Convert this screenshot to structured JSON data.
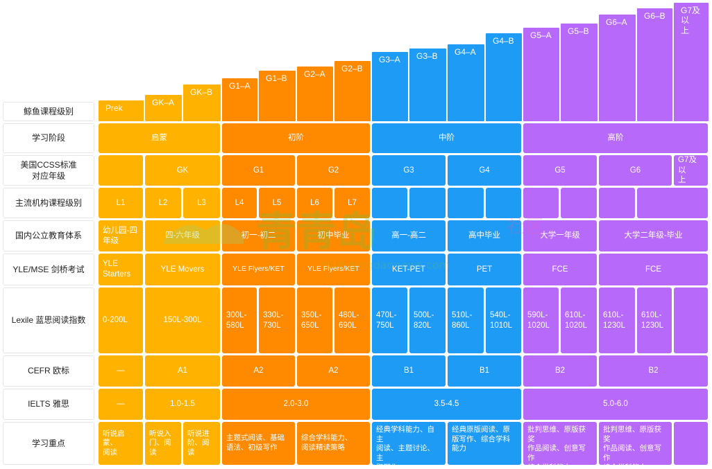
{
  "colors": {
    "yellow": "#FFB300",
    "orange": "#FF8A00",
    "blue": "#1E9BF5",
    "purple": "#B769FA"
  },
  "rows": {
    "levels": "鲸鱼课程级别",
    "stage": "学习阶段",
    "ccss": "美国CCSS标准\n对应年级",
    "inst": "主流机构课程级别",
    "domestic": "国内公立教育体系",
    "yle": "YLE/MSE 剑桥考试",
    "lexile": "Lexile 蓝思阅读指数",
    "cefr": "CEFR 欧标",
    "ielts": "IELTS 雅思",
    "focus": "学习重点"
  },
  "levels": [
    "Prek",
    "GK–A",
    "GK–B",
    "G1–A",
    "G1–B",
    "G2–A",
    "G2–B",
    "G3–A",
    "G3–B",
    "G4–A",
    "G4–B",
    "G5–A",
    "G5–B",
    "G6–A",
    "G6–B",
    "G7及以\n上"
  ],
  "stage": [
    "启蒙",
    "初阶",
    "中阶",
    "高阶"
  ],
  "ccss": [
    "",
    "GK",
    "G1",
    "G2",
    "G3",
    "G4",
    "G5",
    "G6",
    "G7及以\n上"
  ],
  "inst": [
    "L1",
    "L2",
    "L3",
    "L4",
    "L5",
    "L6",
    "L7",
    "",
    "",
    "",
    "",
    "",
    "",
    "",
    ""
  ],
  "domestic": [
    "幼儿园-四\n年级",
    "四-六年级",
    "初一-初二",
    "初中毕业",
    "高一-高二",
    "高中毕业",
    "大学一年级",
    "大学二年级-毕业"
  ],
  "yle": [
    "YLE\nStarters",
    "YLE Movers",
    "YLE Flyers/KET",
    "YLE Flyers/KET",
    "KET-PET",
    "PET",
    "FCE",
    "FCE"
  ],
  "lexile": [
    "0-200L",
    "150L-300L",
    "300L-\n580L",
    "330L-\n730L",
    "350L-\n650L",
    "480L-\n690L",
    "470L-\n750L",
    "500L-\n820L",
    "510L-\n860L",
    "540L-\n1010L",
    "590L-\n1020L",
    "610L-\n1020L",
    "610L-\n1230L",
    "610L-\n1230L",
    ""
  ],
  "cefr": [
    "—",
    "A1",
    "A2",
    "A2",
    "B1",
    "B1",
    "B2",
    "B2"
  ],
  "ielts": [
    "—",
    "1.0-1.5",
    "2.0-3.0",
    "3.5-4.5",
    "5.0-6.0"
  ],
  "focus": [
    "听说启蒙、\n阅读",
    "听说入\n门、阅读",
    "听说进\n阶、阅读",
    "主题式阅读、基础\n语法、初级写作",
    "综合学科能力、\n阅读精读策略",
    "经典学科能力、自主\n阅读、主题讨论、主\n题写作",
    "经典原版阅读、原\n版写作、综合学科\n能力",
    "批判思维、原版获奖\n作品阅读、创意写作\n综合学科能力",
    "批判思维、原版获奖\n作品阅读、创意写作\n综合学科能力",
    ""
  ],
  "watermark": {
    "brand": "青青岛",
    "suffix": "社区",
    "url": "club.qingdaonews.com"
  }
}
